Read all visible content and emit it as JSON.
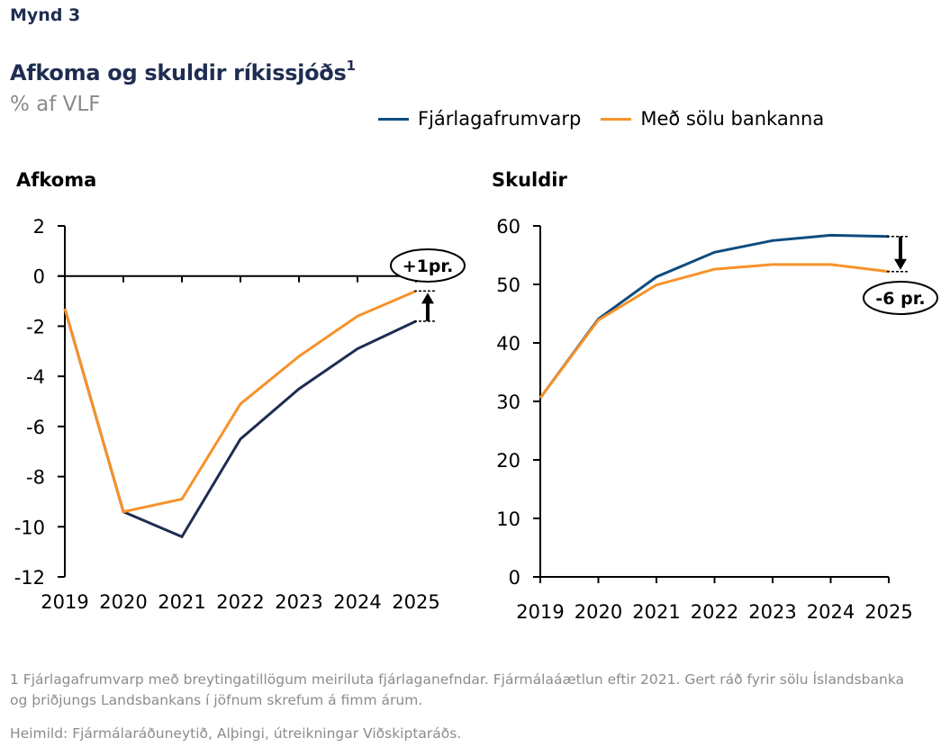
{
  "header": {
    "figure_label": "Mynd 3",
    "title": "Afkoma og skuldir ríkissjóðs",
    "title_superscript": "1",
    "subtitle": "% af VLF"
  },
  "legend": [
    {
      "name": "Fjárlagafrumvarp",
      "color": "#0e4c7e"
    },
    {
      "name": "Með sölu bankanna",
      "color": "#f7922a"
    }
  ],
  "chart_data": [
    {
      "type": "line",
      "title": "Afkoma",
      "xlabel": "",
      "ylabel": "% af VLF",
      "categories": [
        "2019",
        "2020",
        "2021",
        "2022",
        "2023",
        "2024",
        "2025"
      ],
      "ylim": [
        -12,
        2
      ],
      "yticks": [
        "2",
        "0",
        "-2",
        "-4",
        "-6",
        "-8",
        "-10",
        "-12"
      ],
      "ytick_values": [
        2,
        0,
        -2,
        -4,
        -6,
        -8,
        -10,
        -12
      ],
      "series": [
        {
          "name": "Fjárlagafrumvarp",
          "color": "#1f2d52",
          "values": [
            -1.3,
            -9.4,
            -10.4,
            -6.5,
            -4.5,
            -2.9,
            -1.8
          ]
        },
        {
          "name": "Með sölu bankanna",
          "color": "#f7922a",
          "values": [
            -1.3,
            -9.4,
            -8.9,
            -5.1,
            -3.2,
            -1.6,
            -0.6
          ]
        }
      ],
      "annotation": {
        "text": "+1pr.",
        "direction": "up"
      },
      "grid": false
    },
    {
      "type": "line",
      "title": "Skuldir",
      "xlabel": "",
      "ylabel": "% af VLF",
      "categories": [
        "2019",
        "2020",
        "2021",
        "2022",
        "2023",
        "2024",
        "2025"
      ],
      "ylim": [
        0,
        60
      ],
      "yticks": [
        "60",
        "50",
        "40",
        "30",
        "20",
        "10",
        "0"
      ],
      "ytick_values": [
        60,
        50,
        40,
        30,
        20,
        10,
        0
      ],
      "series": [
        {
          "name": "Fjárlagafrumvarp",
          "color": "#0e4c7e",
          "values": [
            30.6,
            44.1,
            51.3,
            55.5,
            57.5,
            58.4,
            58.2
          ]
        },
        {
          "name": "Með sölu bankanna",
          "color": "#f7922a",
          "values": [
            30.6,
            43.9,
            49.9,
            52.6,
            53.4,
            53.4,
            52.2
          ]
        }
      ],
      "annotation": {
        "text": "-6 pr.",
        "direction": "down"
      },
      "grid": false
    }
  ],
  "footnote": "1 Fjárlagafrumvarp með breytingatillögum meiriluta fjárlaganefndar. Fjármálaáætlun eftir 2021. Gert ráð fyrir sölu Íslandsbanka og þriðjungs Landsbankans í jöfnum skrefum á fimm árum.",
  "source": "Heimild: Fjármálaráðuneytið, Alþingi, útreikningar Viðskiptaráðs."
}
